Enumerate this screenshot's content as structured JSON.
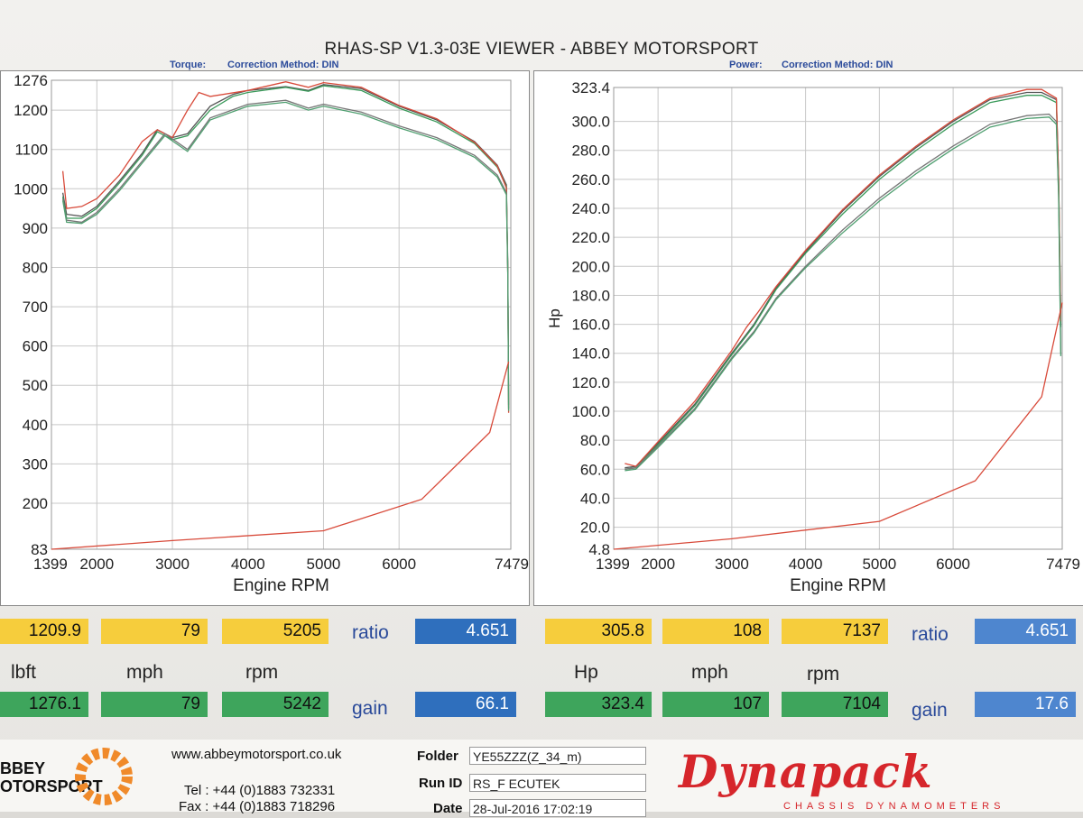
{
  "title": "RHAS-SP V1.3-03E VIEWER - ABBEY MOTORSPORT",
  "left_header": {
    "label": "Torque:",
    "correction": "Correction Method: DIN"
  },
  "right_header": {
    "label": "Power:",
    "correction": "Correction Method: DIN"
  },
  "colors": {
    "gray_run": "#555555",
    "green_run": "#3a9a5a",
    "red_run": "#d84a3a",
    "grid": "#c8c8c8"
  },
  "chart_data": [
    {
      "type": "line",
      "xlabel": "Engine RPM",
      "ylabel": "",
      "xlim": [
        1399,
        7479
      ],
      "ylim": [
        83,
        1276
      ],
      "xticks": [
        "1399",
        "2000",
        "3000",
        "4000",
        "5000",
        "6000",
        "7479"
      ],
      "xtick_values": [
        1399,
        2000,
        3000,
        4000,
        5000,
        6000,
        7479
      ],
      "yticks": [
        "83",
        "200",
        "300",
        "400",
        "500",
        "600",
        "700",
        "800",
        "900",
        "1000",
        "1100",
        "1200",
        "1276"
      ],
      "ytick_values": [
        83,
        200,
        300,
        400,
        500,
        600,
        700,
        800,
        900,
        1000,
        1100,
        1200,
        1276
      ],
      "grid": true,
      "series": [
        {
          "color": "#555555",
          "x": [
            1550,
            1600,
            1800,
            2000,
            2300,
            2600,
            2800,
            3000,
            3200,
            3500,
            3800,
            4000,
            4500,
            4800,
            5000,
            5500,
            6000,
            6500,
            7000,
            7300,
            7420,
            7440,
            7450
          ],
          "y": [
            990,
            935,
            930,
            955,
            1020,
            1090,
            1150,
            1130,
            1140,
            1210,
            1240,
            1250,
            1260,
            1250,
            1265,
            1255,
            1210,
            1175,
            1120,
            1060,
            1010,
            800,
            450
          ]
        },
        {
          "color": "#3a9a5a",
          "x": [
            1550,
            1600,
            1800,
            2000,
            2300,
            2600,
            2800,
            3000,
            3200,
            3500,
            3800,
            4000,
            4500,
            4800,
            5000,
            5500,
            6000,
            6500,
            7000,
            7300,
            7420,
            7440,
            7450
          ],
          "y": [
            980,
            925,
            925,
            950,
            1015,
            1085,
            1145,
            1125,
            1135,
            1200,
            1235,
            1245,
            1258,
            1248,
            1262,
            1250,
            1205,
            1170,
            1115,
            1055,
            1005,
            790,
            440
          ]
        },
        {
          "color": "#d84a3a",
          "x": [
            1550,
            1600,
            1800,
            2000,
            2300,
            2600,
            2800,
            3000,
            3200,
            3350,
            3500,
            4000,
            4500,
            4800,
            5000,
            5500,
            6000,
            6500,
            7000,
            7300,
            7420,
            7440,
            7450
          ],
          "y": [
            1045,
            950,
            955,
            975,
            1035,
            1120,
            1150,
            1130,
            1200,
            1245,
            1235,
            1250,
            1272,
            1258,
            1270,
            1258,
            1212,
            1178,
            1118,
            1058,
            1002,
            780,
            430
          ]
        },
        {
          "color": "#777777",
          "x": [
            1550,
            1600,
            1800,
            2000,
            2300,
            2600,
            2900,
            3200,
            3500,
            4000,
            4500,
            4800,
            5000,
            5500,
            6000,
            6500,
            7000,
            7300,
            7420,
            7440,
            7450
          ],
          "y": [
            975,
            920,
            915,
            940,
            1000,
            1070,
            1140,
            1100,
            1180,
            1215,
            1225,
            1205,
            1215,
            1195,
            1160,
            1130,
            1085,
            1035,
            990,
            780,
            440
          ]
        },
        {
          "color": "#4f9f70",
          "x": [
            1550,
            1600,
            1800,
            2000,
            2300,
            2600,
            2900,
            3200,
            3500,
            4000,
            4500,
            4800,
            5000,
            5500,
            6000,
            6500,
            7000,
            7300,
            7420,
            7440,
            7450
          ],
          "y": [
            970,
            915,
            912,
            935,
            995,
            1065,
            1135,
            1095,
            1175,
            1210,
            1220,
            1200,
            1210,
            1190,
            1155,
            1125,
            1080,
            1030,
            985,
            775,
            435
          ]
        },
        {
          "color": "#d84a3a",
          "x": [
            1399,
            3000,
            5000,
            6300,
            7200,
            7450
          ],
          "y": [
            83,
            105,
            130,
            210,
            380,
            560
          ]
        }
      ]
    },
    {
      "type": "line",
      "xlabel": "Engine RPM",
      "ylabel": "Hp",
      "xlim": [
        1399,
        7479
      ],
      "ylim": [
        4.8,
        323.4
      ],
      "xticks": [
        "1399",
        "2000",
        "3000",
        "4000",
        "5000",
        "6000",
        "7479"
      ],
      "xtick_values": [
        1399,
        2000,
        3000,
        4000,
        5000,
        6000,
        7479
      ],
      "yticks": [
        "4.8",
        "20.0",
        "40.0",
        "60.0",
        "80.0",
        "100.0",
        "120.0",
        "140.0",
        "160.0",
        "180.0",
        "200.0",
        "220.0",
        "240.0",
        "260.0",
        "280.0",
        "300.0",
        "323.4"
      ],
      "ytick_values": [
        4.8,
        20,
        40,
        60,
        80,
        100,
        120,
        140,
        160,
        180,
        200,
        220,
        240,
        260,
        280,
        300,
        323.4
      ],
      "grid": true,
      "series": [
        {
          "color": "#555555",
          "x": [
            1550,
            1700,
            2000,
            2500,
            3000,
            3300,
            3600,
            4000,
            4500,
            5000,
            5500,
            6000,
            6500,
            7000,
            7200,
            7400,
            7430,
            7460
          ],
          "y": [
            61,
            62,
            78,
            105,
            140,
            160,
            185,
            210,
            238,
            262,
            282,
            300,
            315,
            320,
            320,
            315,
            260,
            160
          ]
        },
        {
          "color": "#3a9a5a",
          "x": [
            1550,
            1700,
            2000,
            2500,
            3000,
            3300,
            3600,
            4000,
            4500,
            5000,
            5500,
            6000,
            6500,
            7000,
            7200,
            7400,
            7430,
            7460
          ],
          "y": [
            60,
            61,
            77,
            104,
            139,
            159,
            184,
            209,
            236,
            260,
            280,
            298,
            313,
            318,
            318,
            313,
            258,
            158
          ]
        },
        {
          "color": "#d84a3a",
          "x": [
            1550,
            1700,
            2000,
            2500,
            3000,
            3200,
            3350,
            3600,
            4000,
            4500,
            5000,
            5500,
            6000,
            6500,
            7000,
            7200,
            7400,
            7430,
            7460
          ],
          "y": [
            64,
            62,
            79,
            107,
            142,
            158,
            168,
            186,
            211,
            239,
            263,
            283,
            301,
            316,
            322,
            322,
            316,
            261,
            162
          ]
        },
        {
          "color": "#777777",
          "x": [
            1550,
            1700,
            2000,
            2500,
            3000,
            3300,
            3600,
            4000,
            4500,
            5000,
            5500,
            6000,
            6500,
            7000,
            7300,
            7400,
            7430,
            7460
          ],
          "y": [
            60,
            61,
            76,
            102,
            137,
            155,
            178,
            200,
            225,
            247,
            266,
            283,
            298,
            304,
            305,
            300,
            250,
            140
          ]
        },
        {
          "color": "#4f9f70",
          "x": [
            1550,
            1700,
            2000,
            2500,
            3000,
            3300,
            3600,
            4000,
            4500,
            5000,
            5500,
            6000,
            6500,
            7000,
            7300,
            7400,
            7430,
            7460
          ],
          "y": [
            59,
            60,
            75,
            101,
            136,
            154,
            177,
            199,
            223,
            245,
            264,
            281,
            296,
            302,
            303,
            298,
            248,
            138
          ]
        },
        {
          "color": "#d84a3a",
          "x": [
            1399,
            3000,
            5000,
            6300,
            7200,
            7479
          ],
          "y": [
            4.8,
            12,
            24,
            52,
            110,
            175
          ]
        }
      ]
    }
  ],
  "left_readout": {
    "row1": [
      "1209.9",
      "79",
      "5205"
    ],
    "units": [
      "lbft",
      "mph",
      "rpm"
    ],
    "row2": [
      "1276.1",
      "79",
      "5242"
    ],
    "ratio_label": "ratio",
    "ratio": "4.651",
    "gain_label": "gain",
    "gain": "66.1"
  },
  "right_readout": {
    "row1": [
      "305.8",
      "108",
      "7137"
    ],
    "units": [
      "Hp",
      "mph",
      "rpm"
    ],
    "row2": [
      "323.4",
      "107",
      "7104"
    ],
    "ratio_label": "ratio",
    "ratio": "4.651",
    "gain_label": "gain",
    "gain": "17.6"
  },
  "footer": {
    "logo_line1": "BBEY",
    "logo_line2": "OTORSPORT",
    "website": "www.abbeymotorsport.co.uk",
    "tel": "Tel : +44 (0)1883 732331",
    "fax": "Fax : +44 (0)1883 718296",
    "folder_label": "Folder",
    "folder": "YE55ZZZ(Z_34_m)",
    "runid_label": "Run ID",
    "runid": "RS_F ECUTEK",
    "date_label": "Date",
    "date": "28-Jul-2016 17:02:19",
    "brand": "Dynapack",
    "brand_sub": "CHASSIS DYNAMOMETERS"
  }
}
